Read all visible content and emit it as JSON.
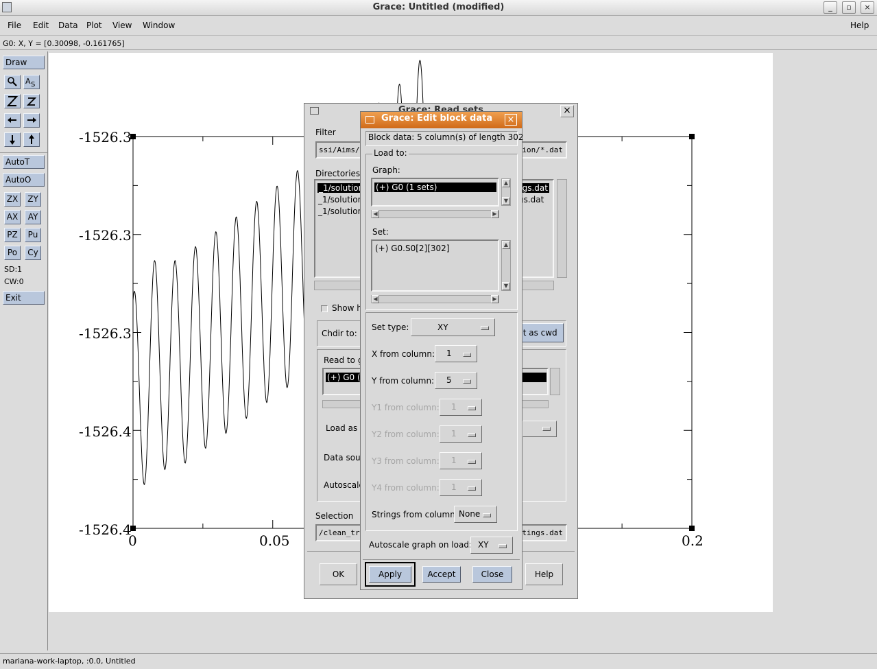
{
  "window": {
    "title": "Grace: Untitled (modified)",
    "minimize": "_",
    "maximize": "▫",
    "close": "×"
  },
  "menu": [
    "File",
    "Edit",
    "Data",
    "Plot",
    "View",
    "Window",
    "Help"
  ],
  "coord_readout": "G0: X, Y = [0.30098, -0.161765]",
  "toolbar": {
    "draw": "Draw",
    "autot": "AutoT",
    "autoo": "AutoO",
    "zx": "ZX",
    "zy": "ZY",
    "ax": "AX",
    "ay": "AY",
    "pz": "PZ",
    "pu": "Pu",
    "po": "Po",
    "cy": "Cy",
    "sd": "SD:1",
    "cw": "CW:0",
    "exit": "Exit",
    "icons": [
      "zoom-icon",
      "text-icon",
      "zoom-z-icon",
      "zoom-z-small-icon",
      "arrow-left-icon",
      "arrow-right-icon",
      "arrow-down-icon",
      "arrow-up-icon"
    ]
  },
  "plot": {
    "y_ticks": [
      "-1526.3",
      "-1526.3",
      "-1526.3",
      "-1526.4",
      "-1526.4"
    ],
    "x_ticks": [
      "0",
      "0.05",
      "0.2"
    ]
  },
  "chart_data": {
    "type": "line",
    "x_ticks": [
      "0",
      "0.05",
      "0.2"
    ],
    "y_ticks": [
      "-1526.3",
      "-1526.3",
      "-1526.3",
      "-1526.4",
      "-1526.4"
    ],
    "xlim": [
      0,
      0.2
    ],
    "series": [
      {
        "note": "oscillating trace, partially obscured by dialogs",
        "x": [
          0.0,
          0.0075,
          0.0155,
          0.0235,
          0.0315,
          0.0395,
          0.047,
          0.055,
          0.0625,
          0.0695,
          0.0765,
          0.0835,
          0.0905,
          0.0965,
          0.1015,
          0.1058
        ],
        "y": [
          -1526.36,
          -1526.35,
          -1526.35,
          -1526.345,
          -1526.34,
          -1526.335,
          -1526.33,
          -1526.325,
          -1526.32,
          -1526.315,
          -1526.31,
          -1526.305,
          -1526.3,
          -1526.295,
          -1526.29,
          -1526.285
        ]
      }
    ]
  },
  "read_sets": {
    "title": "Grace: Read sets",
    "filter_label": "Filter",
    "filter_value": "ssi/Aims/a",
    "filter_value_right": "tion/*.dat",
    "directories_label": "Directories",
    "dir_items": [
      "_1/solution",
      "_1/solution",
      "_1/solution"
    ],
    "file_items": [
      "ngs.dat",
      "gs.dat"
    ],
    "show_hidden_label": "Show h",
    "chdir_label": "Chdir to:",
    "set_cwd": "et as cwd",
    "read_to_label": "Read to g",
    "read_to_item": "(+) G0 (1",
    "load_as_label": "Load as",
    "data_source_label": "Data sour",
    "autoscale_label": "Autoscale",
    "selection_label": "Selection",
    "selection_value": "/clean_tre",
    "selection_value_right": "stings.dat",
    "ok": "OK",
    "help": "Help"
  },
  "edit_block": {
    "title": "Grace: Edit block data",
    "block_info": "Block data: 5 column(s) of length 302",
    "load_to": "Load to:",
    "graph_label": "Graph:",
    "graph_item": "(+) G0 (1 sets)",
    "set_label": "Set:",
    "set_item": "(+) G0.S0[2][302]",
    "set_type_label": "Set type:",
    "set_type_value": "XY",
    "x_col_label": "X from column:",
    "x_col_value": "1",
    "y_col_label": "Y from column:",
    "y_col_value": "5",
    "y1_col_label": "Y1 from column:",
    "y1_col_value": "1",
    "y2_col_label": "Y2 from column:",
    "y2_col_value": "1",
    "y3_col_label": "Y3 from column:",
    "y3_col_value": "1",
    "y4_col_label": "Y4 from column:",
    "y4_col_value": "1",
    "strings_col_label": "Strings from column:",
    "strings_col_value": "None",
    "autoscale_label": "Autoscale graph on load:",
    "autoscale_value": "XY",
    "apply": "Apply",
    "accept": "Accept",
    "close": "Close"
  },
  "status": "mariana-work-laptop, :0.0, Untitled"
}
